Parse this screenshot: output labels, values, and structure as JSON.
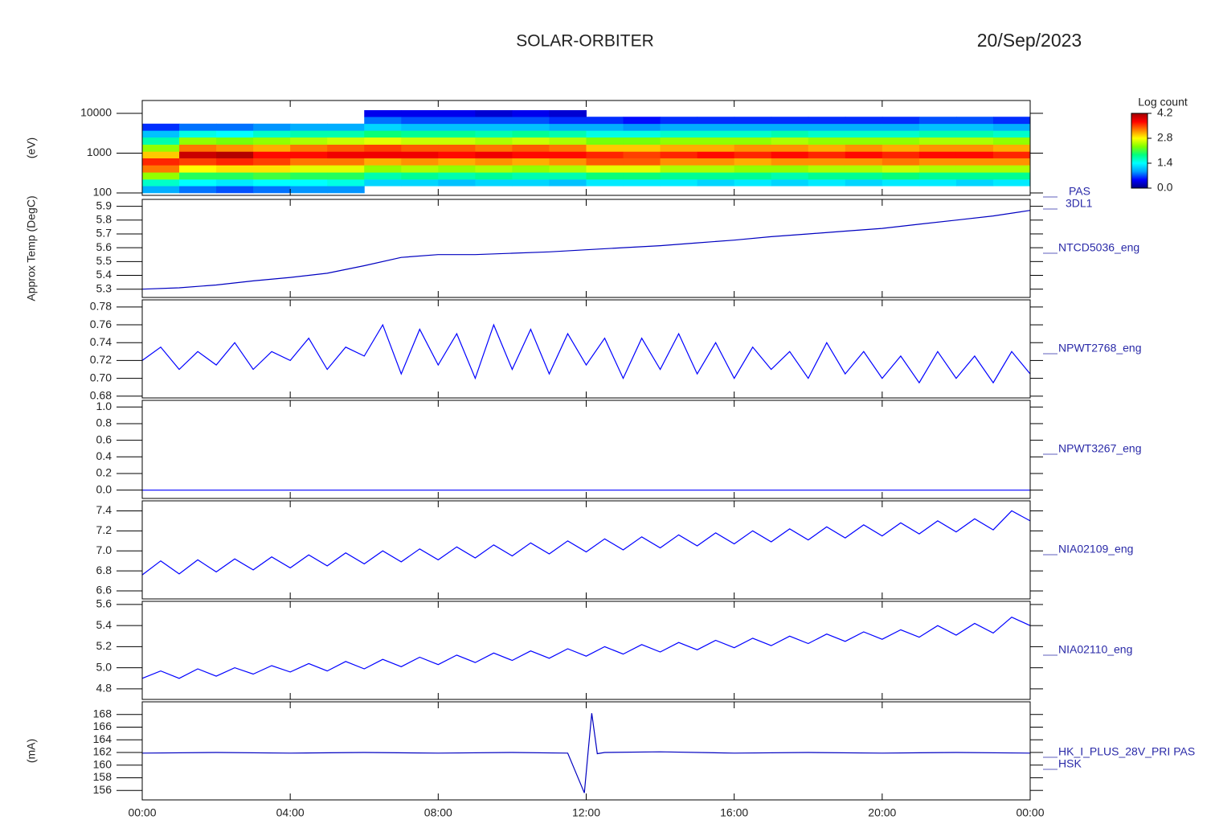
{
  "title": "SOLAR-ORBITER",
  "date": "20/Sep/2023",
  "x_axis": {
    "xlim": [
      0,
      24
    ],
    "xticks": [
      {
        "value": 0,
        "label": "00:00"
      },
      {
        "value": 4,
        "label": "04:00"
      },
      {
        "value": 8,
        "label": "08:00"
      },
      {
        "value": 12,
        "label": "12:00"
      },
      {
        "value": 16,
        "label": "16:00"
      },
      {
        "value": 20,
        "label": "20:00"
      },
      {
        "value": 24,
        "label": "00:00"
      }
    ]
  },
  "chart_data": [
    {
      "type": "heatmap",
      "ylabel": "(eV)",
      "label_lines": [
        "PAS",
        "3DL1"
      ],
      "log_y": true,
      "ylim": [
        87,
        21000
      ],
      "yticks": [
        100,
        1000,
        10000
      ],
      "colorbar": {
        "title": "Log count",
        "range": [
          0,
          4.2
        ],
        "ticks": [
          {
            "value": 0,
            "label": "0.0"
          },
          1.4,
          2.8,
          4.2
        ]
      },
      "colormap": [
        "#000080",
        "#0000ff",
        "#00a0ff",
        "#00ffff",
        "#00ff80",
        "#80ff00",
        "#ffff00",
        "#ff8000",
        "#ff0000",
        "#a00000"
      ],
      "x_bins": [
        0,
        1,
        2,
        3,
        4,
        5,
        6,
        7,
        8,
        9,
        10,
        11,
        12,
        13,
        14,
        15,
        16,
        17,
        18,
        19,
        20,
        21,
        22,
        23,
        24
      ],
      "energy_bins": [
        100,
        150,
        220,
        330,
        500,
        750,
        1100,
        1650,
        2500,
        3700,
        5500,
        8200,
        12000
      ],
      "values": [
        [
          1.0,
          1.6,
          2.4,
          3.3,
          3.6,
          3.0,
          2.4,
          1.7,
          1.1,
          0.6,
          null,
          null
        ],
        [
          0.8,
          1.4,
          2.0,
          2.8,
          3.5,
          4.0,
          3.3,
          2.4,
          1.5,
          0.8,
          null,
          null
        ],
        [
          0.7,
          1.3,
          2.0,
          2.9,
          3.6,
          4.1,
          3.2,
          2.3,
          1.4,
          0.8,
          null,
          null
        ],
        [
          0.8,
          1.4,
          2.1,
          2.9,
          3.5,
          3.7,
          3.1,
          2.4,
          1.6,
          0.9,
          null,
          null
        ],
        [
          0.9,
          1.4,
          2.0,
          2.7,
          3.3,
          3.7,
          3.3,
          2.5,
          1.7,
          1.0,
          null,
          null
        ],
        [
          0.9,
          1.5,
          2.0,
          2.7,
          3.3,
          3.8,
          3.4,
          2.6,
          1.7,
          1.0,
          null,
          null
        ],
        [
          null,
          1.2,
          1.7,
          2.4,
          3.1,
          3.8,
          3.5,
          2.7,
          1.9,
          1.2,
          0.8,
          0.4
        ],
        [
          null,
          1.2,
          1.8,
          2.5,
          3.2,
          3.8,
          3.4,
          2.6,
          1.8,
          1.1,
          0.7,
          0.4
        ],
        [
          null,
          1.1,
          1.7,
          2.4,
          3.1,
          3.7,
          3.4,
          2.6,
          1.8,
          1.1,
          0.7,
          0.4
        ],
        [
          null,
          1.2,
          1.8,
          2.5,
          3.2,
          3.8,
          3.3,
          2.5,
          1.7,
          1.1,
          0.7,
          0.3
        ],
        [
          null,
          1.2,
          1.7,
          2.4,
          3.1,
          3.7,
          3.4,
          2.6,
          1.8,
          1.1,
          0.7,
          0.4
        ],
        [
          null,
          1.1,
          1.7,
          2.5,
          3.2,
          3.7,
          3.3,
          2.5,
          1.7,
          1.0,
          0.6,
          0.3
        ],
        [
          null,
          1.3,
          1.9,
          2.7,
          3.4,
          3.6,
          3.0,
          2.3,
          1.5,
          1.0,
          0.6,
          null
        ],
        [
          null,
          1.3,
          1.9,
          2.7,
          3.4,
          3.5,
          3.0,
          2.3,
          1.5,
          0.9,
          0.5,
          null
        ],
        [
          null,
          1.3,
          1.8,
          2.5,
          3.2,
          3.6,
          3.1,
          2.4,
          1.6,
          1.0,
          0.6,
          null
        ],
        [
          null,
          1.2,
          1.8,
          2.5,
          3.2,
          3.7,
          3.1,
          2.4,
          1.6,
          1.0,
          0.6,
          null
        ],
        [
          null,
          1.3,
          1.8,
          2.4,
          3.1,
          3.6,
          3.2,
          2.4,
          1.6,
          1.0,
          0.6,
          null
        ],
        [
          null,
          1.2,
          1.7,
          2.4,
          3.2,
          3.7,
          3.2,
          2.5,
          1.7,
          1.0,
          0.6,
          null
        ],
        [
          null,
          1.3,
          1.8,
          2.5,
          3.2,
          3.6,
          3.1,
          2.4,
          1.6,
          1.0,
          0.6,
          null
        ],
        [
          null,
          1.2,
          1.8,
          2.5,
          3.2,
          3.7,
          3.2,
          2.4,
          1.6,
          1.0,
          0.6,
          null
        ],
        [
          null,
          1.3,
          1.9,
          2.6,
          3.3,
          3.6,
          3.1,
          2.4,
          1.6,
          1.0,
          0.6,
          null
        ],
        [
          null,
          1.3,
          1.8,
          2.5,
          3.2,
          3.7,
          3.2,
          2.5,
          1.7,
          1.1,
          0.7,
          null
        ],
        [
          null,
          1.2,
          1.8,
          2.5,
          3.2,
          3.7,
          3.2,
          2.5,
          1.7,
          1.1,
          0.7,
          null
        ],
        [
          null,
          1.3,
          1.8,
          2.5,
          3.2,
          3.6,
          3.1,
          2.4,
          1.6,
          1.0,
          0.6,
          null
        ]
      ]
    },
    {
      "type": "line",
      "ylabel": "Approx Temp (DegC)",
      "label_lines": [
        "NTCD5036_eng"
      ],
      "color": "#0000c0",
      "ylim": [
        5.24,
        5.95
      ],
      "yticks": [
        5.3,
        5.4,
        5.5,
        5.6,
        5.7,
        5.8,
        5.9
      ],
      "x": [
        0,
        1,
        2,
        3,
        4,
        5,
        6,
        7,
        8,
        9,
        10,
        11,
        12,
        13,
        14,
        15,
        16,
        17,
        18,
        19,
        20,
        21,
        22,
        23,
        24
      ],
      "values": [
        5.3,
        5.31,
        5.33,
        5.36,
        5.385,
        5.415,
        5.47,
        5.53,
        5.55,
        5.55,
        5.56,
        5.57,
        5.585,
        5.6,
        5.615,
        5.635,
        5.655,
        5.68,
        5.7,
        5.72,
        5.74,
        5.77,
        5.8,
        5.83,
        5.87
      ]
    },
    {
      "type": "line",
      "label_lines": [
        "NPWT2768_eng"
      ],
      "color": "#0000ff",
      "ylim": [
        0.678,
        0.788
      ],
      "yticks": [
        0.68,
        {
          "value": 0.7,
          "label": "0.70"
        },
        0.72,
        0.74,
        0.76,
        0.78
      ],
      "x": [
        0,
        0.5,
        1,
        1.5,
        2,
        2.5,
        3,
        3.5,
        4,
        4.5,
        5,
        5.5,
        6,
        6.5,
        7,
        7.5,
        8,
        8.5,
        9,
        9.5,
        10,
        10.5,
        11,
        11.5,
        12,
        12.5,
        13,
        13.5,
        14,
        14.5,
        15,
        15.5,
        16,
        16.5,
        17,
        17.5,
        18,
        18.5,
        19,
        19.5,
        20,
        20.5,
        21,
        21.5,
        22,
        22.5,
        23,
        23.5,
        24
      ],
      "values": [
        0.72,
        0.735,
        0.71,
        0.73,
        0.715,
        0.74,
        0.71,
        0.73,
        0.72,
        0.745,
        0.71,
        0.735,
        0.725,
        0.76,
        0.705,
        0.755,
        0.715,
        0.75,
        0.7,
        0.76,
        0.71,
        0.755,
        0.705,
        0.75,
        0.715,
        0.745,
        0.7,
        0.745,
        0.71,
        0.75,
        0.705,
        0.74,
        0.7,
        0.735,
        0.71,
        0.73,
        0.7,
        0.74,
        0.705,
        0.73,
        0.7,
        0.725,
        0.695,
        0.73,
        0.7,
        0.725,
        0.695,
        0.73,
        0.705
      ]
    },
    {
      "type": "line",
      "label_lines": [
        "NPWT3267_eng"
      ],
      "color": "#0000ff",
      "ylim": [
        -0.1,
        1.08
      ],
      "yticks": [
        {
          "value": 0,
          "label": "0.0"
        },
        0.2,
        0.4,
        0.6,
        0.8,
        {
          "value": 1,
          "label": "1.0"
        }
      ],
      "x": [
        0,
        24
      ],
      "values": [
        0,
        0
      ]
    },
    {
      "type": "line",
      "label_lines": [
        "NIA02109_eng"
      ],
      "color": "#0000ff",
      "ylim": [
        6.52,
        7.5
      ],
      "yticks": [
        6.6,
        6.8,
        {
          "value": 7,
          "label": "7.0"
        },
        7.2,
        7.4
      ],
      "x": [
        0,
        0.5,
        1,
        1.5,
        2,
        2.5,
        3,
        3.5,
        4,
        4.5,
        5,
        5.5,
        6,
        6.5,
        7,
        7.5,
        8,
        8.5,
        9,
        9.5,
        10,
        10.5,
        11,
        11.5,
        12,
        12.5,
        13,
        13.5,
        14,
        14.5,
        15,
        15.5,
        16,
        16.5,
        17,
        17.5,
        18,
        18.5,
        19,
        19.5,
        20,
        20.5,
        21,
        21.5,
        22,
        22.5,
        23,
        23.5,
        24
      ],
      "values": [
        6.76,
        6.9,
        6.77,
        6.91,
        6.79,
        6.92,
        6.81,
        6.94,
        6.83,
        6.96,
        6.85,
        6.98,
        6.87,
        7.0,
        6.89,
        7.02,
        6.91,
        7.04,
        6.93,
        7.06,
        6.95,
        7.08,
        6.97,
        7.1,
        6.99,
        7.12,
        7.01,
        7.14,
        7.03,
        7.16,
        7.05,
        7.18,
        7.07,
        7.2,
        7.09,
        7.22,
        7.11,
        7.24,
        7.13,
        7.26,
        7.15,
        7.28,
        7.17,
        7.3,
        7.19,
        7.32,
        7.21,
        7.4,
        7.3
      ]
    },
    {
      "type": "line",
      "label_lines": [
        "NIA02110_eng"
      ],
      "color": "#0000ff",
      "ylim": [
        4.7,
        5.63
      ],
      "yticks": [
        4.8,
        {
          "value": 5,
          "label": "5.0"
        },
        5.2,
        5.4,
        5.6
      ],
      "x": [
        0,
        0.5,
        1,
        1.5,
        2,
        2.5,
        3,
        3.5,
        4,
        4.5,
        5,
        5.5,
        6,
        6.5,
        7,
        7.5,
        8,
        8.5,
        9,
        9.5,
        10,
        10.5,
        11,
        11.5,
        12,
        12.5,
        13,
        13.5,
        14,
        14.5,
        15,
        15.5,
        16,
        16.5,
        17,
        17.5,
        18,
        18.5,
        19,
        19.5,
        20,
        20.5,
        21,
        21.5,
        22,
        22.5,
        23,
        23.5,
        24
      ],
      "values": [
        4.9,
        4.97,
        4.9,
        4.99,
        4.92,
        5.0,
        4.94,
        5.02,
        4.96,
        5.04,
        4.97,
        5.06,
        4.99,
        5.08,
        5.01,
        5.1,
        5.03,
        5.12,
        5.05,
        5.14,
        5.07,
        5.16,
        5.09,
        5.18,
        5.11,
        5.2,
        5.13,
        5.22,
        5.15,
        5.24,
        5.17,
        5.26,
        5.19,
        5.28,
        5.21,
        5.3,
        5.23,
        5.32,
        5.25,
        5.34,
        5.27,
        5.36,
        5.29,
        5.4,
        5.31,
        5.42,
        5.33,
        5.48,
        5.4
      ]
    },
    {
      "type": "line",
      "ylabel": "(mA)",
      "label_lines": [
        "HK_I_PLUS_28V_PRI PAS",
        "HSK"
      ],
      "color": "#0000c0",
      "ylim": [
        154.5,
        170
      ],
      "yticks": [
        156,
        158,
        160,
        162,
        164,
        166,
        168
      ],
      "x": [
        0,
        2,
        4,
        6,
        8,
        10,
        11.5,
        11.95,
        12.05,
        12.15,
        12.3,
        12.5,
        14,
        16,
        18,
        20,
        22,
        24
      ],
      "values": [
        161.9,
        162.0,
        161.9,
        162.0,
        161.9,
        162.0,
        161.9,
        155.6,
        162.0,
        168.2,
        161.8,
        162.0,
        162.1,
        161.9,
        162.0,
        161.9,
        162.0,
        161.9
      ]
    }
  ]
}
